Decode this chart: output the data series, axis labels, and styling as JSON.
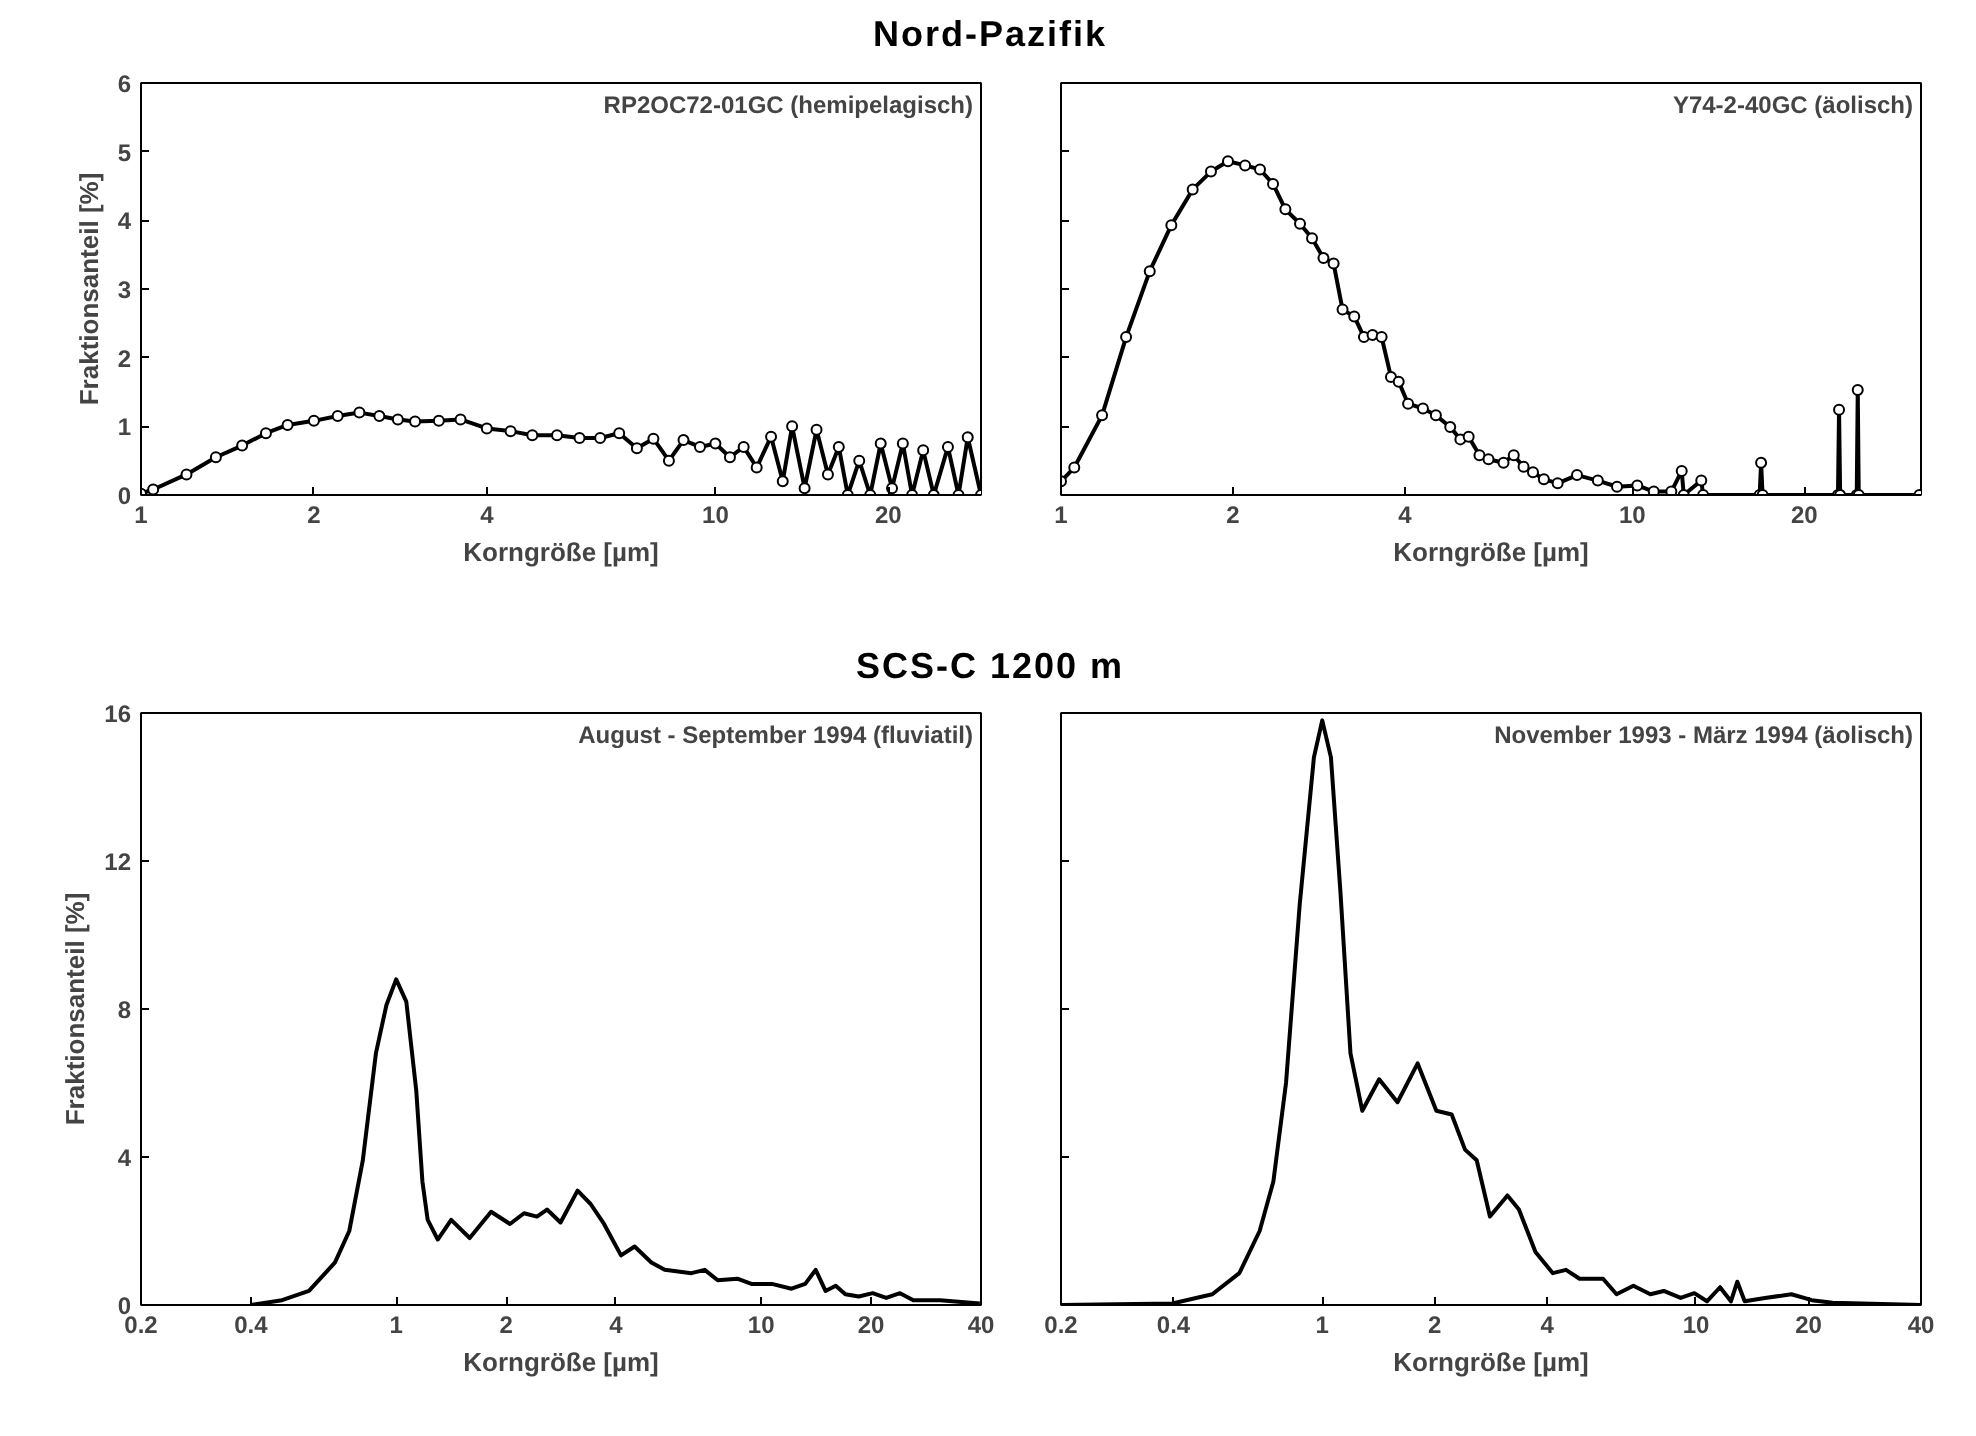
{
  "chart_data": [
    {
      "type": "line",
      "title": "Nord-Pazifik",
      "xlabel": "Korngröße [µm]",
      "ylabel": "Fraktionsanteil [%]",
      "annotations": [
        "RP2OC72-01GC (hemipelagisch)"
      ],
      "log": "x",
      "xlim": [
        1,
        29
      ],
      "ylim": [
        0,
        6
      ],
      "xticks": [
        1,
        2,
        4,
        10,
        20
      ],
      "yticks": [
        0,
        1,
        2,
        3,
        4,
        5,
        6
      ],
      "marker": "circle",
      "line_style": "solid",
      "series": [
        {
          "color": "#000000",
          "x": [
            1.0,
            1.05,
            1.2,
            1.35,
            1.5,
            1.65,
            1.8,
            2.0,
            2.2,
            2.4,
            2.6,
            2.8,
            3.0,
            3.3,
            3.6,
            4.0,
            4.4,
            4.8,
            5.3,
            5.8,
            6.3,
            6.8,
            7.3,
            7.8,
            8.3,
            8.8,
            9.4,
            10,
            10.6,
            11.2,
            11.8,
            12.5,
            13.1,
            13.6,
            14.3,
            15,
            15.7,
            16.4,
            17,
            17.8,
            18.6,
            19.4,
            20.3,
            21.2,
            22,
            23,
            24,
            25.4,
            26.5,
            27.5,
            29
          ],
          "values": [
            0.02,
            0.08,
            0.3,
            0.55,
            0.72,
            0.9,
            1.02,
            1.08,
            1.15,
            1.2,
            1.15,
            1.1,
            1.07,
            1.08,
            1.1,
            0.97,
            0.93,
            0.87,
            0.87,
            0.83,
            0.83,
            0.9,
            0.68,
            0.82,
            0.5,
            0.8,
            0.7,
            0.75,
            0.55,
            0.7,
            0.4,
            0.85,
            0.2,
            1.0,
            0.1,
            0.95,
            0.3,
            0.7,
            0.0,
            0.5,
            0.0,
            0.75,
            0.1,
            0.75,
            0.0,
            0.65,
            0.0,
            0.7,
            0.0,
            0.84,
            0.0
          ]
        }
      ]
    },
    {
      "type": "line",
      "xlabel": "Korngröße [µm]",
      "annotations": [
        "Y74-2-40GC (äolisch)"
      ],
      "log": "x",
      "xlim": [
        1,
        32
      ],
      "ylim": [
        0,
        6
      ],
      "xticks": [
        1,
        2,
        4,
        10,
        20
      ],
      "yticks": [
        0,
        1,
        2,
        3,
        4,
        5,
        6
      ],
      "tick_labels": "x",
      "marker": "circle",
      "line_style": "solid",
      "series": [
        {
          "color": "#000000",
          "x": [
            1.0,
            1.055,
            1.18,
            1.3,
            1.43,
            1.56,
            1.7,
            1.83,
            1.96,
            2.1,
            2.23,
            2.35,
            2.47,
            2.62,
            2.75,
            2.88,
            3.0,
            3.11,
            3.26,
            3.39,
            3.51,
            3.64,
            3.78,
            3.9,
            4.05,
            4.3,
            4.53,
            4.8,
            5.0,
            5.17,
            5.4,
            5.6,
            5.95,
            6.2,
            6.45,
            6.7,
            7.0,
            7.4,
            8.0,
            8.7,
            9.4,
            10.2,
            10.9,
            11.7,
            12.2,
            12.3,
            13.2,
            13.3,
            16.7,
            16.8,
            16.9,
            22.9,
            23.0,
            23.1,
            24.7,
            24.8,
            24.9,
            31.8
          ],
          "values": [
            0.2,
            0.4,
            1.16,
            2.3,
            3.26,
            3.93,
            4.45,
            4.71,
            4.86,
            4.8,
            4.74,
            4.53,
            4.16,
            3.95,
            3.74,
            3.45,
            3.37,
            2.7,
            2.6,
            2.3,
            2.33,
            2.3,
            1.72,
            1.65,
            1.33,
            1.26,
            1.16,
            0.99,
            0.81,
            0.85,
            0.58,
            0.52,
            0.47,
            0.58,
            0.41,
            0.33,
            0.23,
            0.17,
            0.29,
            0.21,
            0.12,
            0.14,
            0.05,
            0.05,
            0.35,
            0.0,
            0.21,
            0.0,
            0.0,
            0.47,
            0.0,
            0.0,
            1.24,
            0.0,
            0.0,
            1.53,
            0.0,
            0.0
          ]
        }
      ]
    },
    {
      "type": "line",
      "title": "SCS-C 1200 m",
      "xlabel": "Korngröße [µm]",
      "ylabel": "Fraktionsanteil [%]",
      "annotations": [
        "August - September 1994 (fluviatil)"
      ],
      "log": "x",
      "xlim": [
        0.2,
        40
      ],
      "ylim": [
        0,
        16
      ],
      "xticks": [
        0.2,
        0.4,
        1,
        2,
        4,
        10,
        20,
        40
      ],
      "yticks": [
        0,
        4,
        8,
        12,
        16
      ],
      "line_style": "solid",
      "series": [
        {
          "color": "#000000",
          "x": [
            0.399,
            0.487,
            0.577,
            0.68,
            0.744,
            0.81,
            0.88,
            0.94,
            1.0,
            1.066,
            1.135,
            1.18,
            1.22,
            1.3,
            1.415,
            1.59,
            1.82,
            2.05,
            2.24,
            2.43,
            2.59,
            2.82,
            3.14,
            3.41,
            3.71,
            4.13,
            4.5,
            5.0,
            5.44,
            6.44,
            7.0,
            7.6,
            8.6,
            9.4,
            10.7,
            12.1,
            13.2,
            14.1,
            15.0,
            16.0,
            17.0,
            18.5,
            20.2,
            22.0,
            24.0,
            26.1,
            30.9,
            39.7
          ],
          "values": [
            0.0,
            0.13,
            0.38,
            1.15,
            2.0,
            3.9,
            6.8,
            8.1,
            8.8,
            8.2,
            5.8,
            3.34,
            2.3,
            1.77,
            2.3,
            1.81,
            2.52,
            2.19,
            2.48,
            2.39,
            2.58,
            2.23,
            3.09,
            2.73,
            2.19,
            1.34,
            1.58,
            1.15,
            0.95,
            0.86,
            0.95,
            0.67,
            0.71,
            0.57,
            0.57,
            0.44,
            0.57,
            0.95,
            0.38,
            0.52,
            0.29,
            0.23,
            0.32,
            0.19,
            0.32,
            0.13,
            0.13,
            0.04
          ]
        }
      ]
    },
    {
      "type": "line",
      "xlabel": "Korngröße [µm]",
      "annotations": [
        "November 1993 - März 1994 (äolisch)"
      ],
      "log": "x",
      "xlim": [
        0.2,
        40
      ],
      "ylim": [
        0,
        16
      ],
      "xticks": [
        0.2,
        0.4,
        1,
        2,
        4,
        10,
        20,
        40
      ],
      "yticks": [
        0,
        4,
        8,
        12,
        16
      ],
      "tick_labels": "x",
      "line_style": "solid",
      "series": [
        {
          "color": "#000000",
          "x": [
            0.2,
            0.397,
            0.508,
            0.6,
            0.68,
            0.74,
            0.8,
            0.87,
            0.95,
            1.0,
            1.055,
            1.118,
            1.19,
            1.28,
            1.42,
            1.59,
            1.8,
            2.02,
            2.22,
            2.41,
            2.59,
            2.81,
            3.13,
            3.36,
            3.72,
            4.14,
            4.49,
            4.88,
            5.64,
            6.13,
            6.8,
            7.55,
            8.2,
            9.1,
            9.9,
            10.7,
            11.6,
            12.4,
            12.9,
            13.5,
            15.3,
            18.0,
            20.4,
            23.2,
            40
          ],
          "values": [
            0.0,
            0.04,
            0.29,
            0.86,
            2.0,
            3.34,
            6.0,
            10.8,
            14.8,
            15.8,
            14.8,
            11.2,
            6.8,
            5.25,
            6.1,
            5.48,
            6.53,
            5.25,
            5.15,
            4.2,
            3.91,
            2.39,
            2.96,
            2.58,
            1.43,
            0.86,
            0.95,
            0.71,
            0.71,
            0.29,
            0.52,
            0.29,
            0.38,
            0.19,
            0.32,
            0.1,
            0.48,
            0.1,
            0.63,
            0.1,
            0.19,
            0.29,
            0.13,
            0.06,
            0.0
          ]
        }
      ]
    }
  ]
}
